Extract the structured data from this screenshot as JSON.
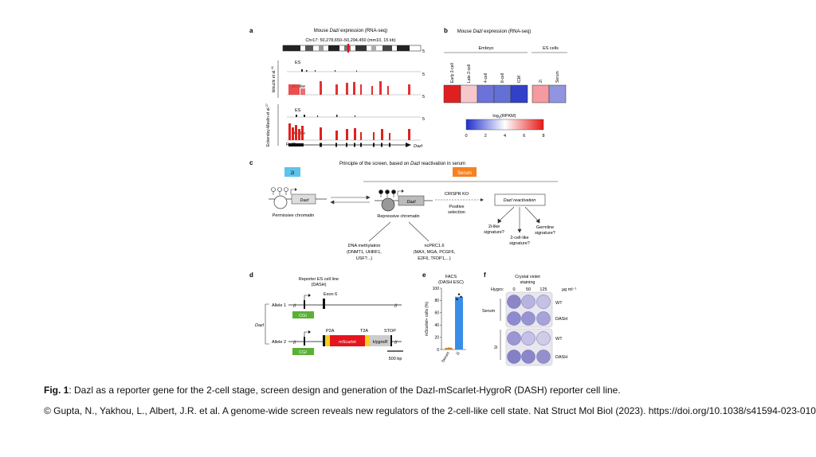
{
  "panels": {
    "a": {
      "letter": "a",
      "title_prefix": "Mouse ",
      "title_gene": "Dazl",
      "title_suffix": " expression (RNA-seq)",
      "locus": "Chr17: 50,278,650–50,294,450 (mm10, 15 kb)",
      "scale_5": "5",
      "group1_label": "Ishiuchi et al.",
      "group1_ref": "18",
      "group2_label": "Eckersley-Maslin et al.",
      "group2_ref": "27",
      "es": "ES",
      "twoc": "2C-like",
      "refseq": "RefSeq",
      "gene": "Dazl"
    },
    "b": {
      "letter": "b",
      "title_prefix": "Mouse ",
      "title_gene": "Dazl",
      "title_suffix": " expression (RNA-seq)",
      "embryo": "Embryo",
      "es_cells": "ES cells",
      "columns": [
        "Early 2-cell",
        "Late 2-cell",
        "4-cell",
        "8-cell",
        "ICM",
        "2i",
        "Serum"
      ],
      "colors": [
        "#e02020",
        "#f6c8cc",
        "#6c72d8",
        "#6470d4",
        "#3340c8",
        "#f49aa0",
        "#8f95e0"
      ],
      "legend_title": "log2(RPKM)",
      "legend_ticks": [
        "0",
        "2",
        "4",
        "6",
        "8"
      ]
    },
    "c": {
      "letter": "c",
      "title_prefix": "Principle of the screen, based on ",
      "title_gene": "Dazl",
      "title_suffix": " reactivation in serum",
      "twoi": "2i",
      "serum": "Serum",
      "dazl": "Dazl",
      "permissive": "Permissive chromatin",
      "repressive": "Repressive chromatin",
      "crispr": "CRISPR KO",
      "positive": "Positive",
      "selection": "selection",
      "reactivation": "Dazl reactivation",
      "twoi_like_1": "2i-like",
      "twoi_like_2": "signature?",
      "twocell_1": "2-cell-like",
      "twocell_2": "signature?",
      "germ_1": "Germline",
      "germ_2": "signature?",
      "dnam_1": "DNA methylation",
      "dnam_2": "(DNMT1, UHRF1,",
      "dnam_3": "USF?...)",
      "prc_1": "ncPRC1.6",
      "prc_2": "(MAX, MGA, PCGF6,",
      "prc_3": "E2F6, TFDP1,...)"
    },
    "d": {
      "letter": "d",
      "title_1": "Reporter ES cell line",
      "title_2": "(DASH)",
      "allele1": "Allele 1",
      "allele2": "Allele 2",
      "exon6": "Exon 6",
      "cgi": "CGI",
      "dazl": "Dazl",
      "p2a": "P2A",
      "t2a": "T2A",
      "stop": "STOP",
      "mscarlet": "mScarlet",
      "hygro": "HygroR",
      "scale": "500 bp"
    },
    "e": {
      "letter": "e",
      "title_1": "FACS",
      "title_2": "(DASH ESC)",
      "ylabel": "mScarlet+ cells (%)",
      "ticks": [
        "0",
        "20",
        "40",
        "60",
        "80",
        "100"
      ]
    },
    "f": {
      "letter": "f",
      "title_1": "Crystal violet",
      "title_2": "staining",
      "hygro_label": "Hygro:",
      "doses": [
        "0",
        "50",
        "125"
      ],
      "unit": "µg ml⁻¹",
      "serum": "Serum",
      "twoi": "2i",
      "wt": "WT",
      "dash": "DASH"
    }
  },
  "chart_data": {
    "type": "bar",
    "categories": [
      "Serum",
      "2i"
    ],
    "values": [
      2,
      86
    ],
    "points": [
      [
        1.5,
        2,
        1.8
      ],
      [
        82,
        90,
        86
      ]
    ],
    "xlabel": "",
    "ylabel": "mScarlet+ cells (%)",
    "ylim": [
      0,
      100
    ],
    "colors": {
      "serum": "#c8851a",
      "twoi": "#3a8ee8"
    }
  },
  "caption": {
    "fig_label": "Fig. 1",
    "text": ": Dazl as a reporter gene for the 2-cell stage, screen design and generation of the Dazl-mScarlet-HygroR (DASH) reporter cell line."
  },
  "citation": "© Gupta, N., Yakhou, L., Albert, J.R. et al. A genome-wide screen reveals new regulators of the 2-cell-like cell state. Nat Struct Mol Biol (2023). https://doi.org/10.1038/s41594-023-01038-z"
}
